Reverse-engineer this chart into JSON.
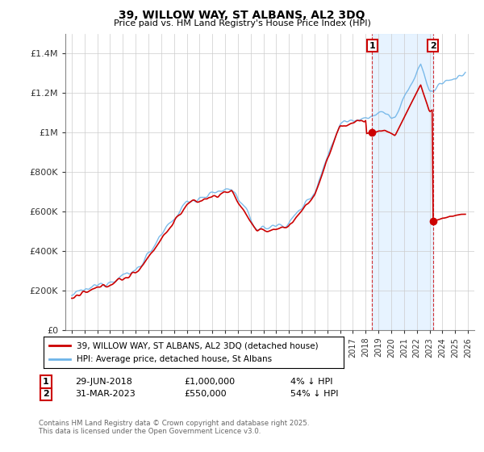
{
  "title": "39, WILLOW WAY, ST ALBANS, AL2 3DQ",
  "subtitle": "Price paid vs. HM Land Registry's House Price Index (HPI)",
  "hpi_color": "#6EB4E8",
  "price_color": "#CC0000",
  "shade_color": "#DDEEFF",
  "background_color": "#FFFFFF",
  "grid_color": "#CCCCCC",
  "ylim": [
    0,
    1500000
  ],
  "yticks": [
    0,
    200000,
    400000,
    600000,
    800000,
    1000000,
    1200000,
    1400000
  ],
  "ytick_labels": [
    "£0",
    "£200K",
    "£400K",
    "£600K",
    "£800K",
    "£1M",
    "£1.2M",
    "£1.4M"
  ],
  "legend_entries": [
    "39, WILLOW WAY, ST ALBANS, AL2 3DQ (detached house)",
    "HPI: Average price, detached house, St Albans"
  ],
  "transaction1": {
    "label": "1",
    "date": "29-JUN-2018",
    "price": "£1,000,000",
    "hpi_diff": "4% ↓ HPI",
    "x": 2018.5
  },
  "transaction2": {
    "label": "2",
    "date": "31-MAR-2023",
    "price": "£550,000",
    "hpi_diff": "54% ↓ HPI",
    "x": 2023.25
  },
  "t1_y": 1000000,
  "t2_y": 550000,
  "footer": "Contains HM Land Registry data © Crown copyright and database right 2025.\nThis data is licensed under the Open Government Licence v3.0.",
  "xlim": [
    1994.5,
    2026.5
  ],
  "xticks": [
    1995,
    1996,
    1997,
    1998,
    1999,
    2000,
    2001,
    2002,
    2003,
    2004,
    2005,
    2006,
    2007,
    2008,
    2009,
    2010,
    2011,
    2012,
    2013,
    2014,
    2015,
    2016,
    2017,
    2018,
    2019,
    2020,
    2021,
    2022,
    2023,
    2024,
    2025,
    2026
  ]
}
